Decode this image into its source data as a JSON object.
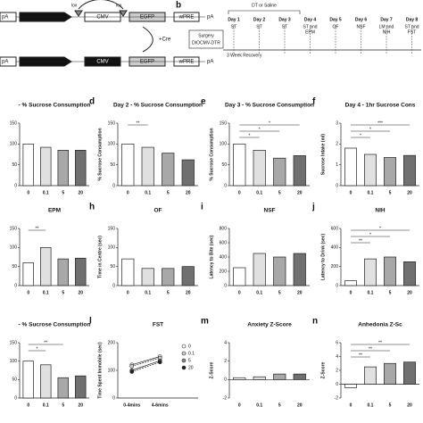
{
  "panel_a": {
    "left_end": "pA",
    "lox_1": "lox",
    "lox_2": "lox",
    "promoter": "CMV",
    "reporter": "EGFP",
    "wpre": "wPRE",
    "polya": "pA",
    "cre": "+Cre",
    "promoter_2": "CMV",
    "reporter_2": "EGFP",
    "wpre_2": "wPRE",
    "polya_2": "pA",
    "left_end_2": "pA"
  },
  "panel_b": {
    "label": "b",
    "treatment": "DT or Saline",
    "surgery": "Surgery",
    "virus": "DIOCMV-DTR",
    "recovery": "3 Week Recovery",
    "days": [
      {
        "day": "Day 1",
        "test": [
          "ST"
        ]
      },
      {
        "day": "Day 2",
        "test": [
          "ST"
        ]
      },
      {
        "day": "Day 3",
        "test": [
          "ST"
        ]
      },
      {
        "day": "Day 4",
        "test": [
          "ST and",
          "EPM"
        ]
      },
      {
        "day": "Day 5",
        "test": [
          "OF"
        ]
      },
      {
        "day": "Day 6",
        "test": [
          "NSF"
        ]
      },
      {
        "day": "Day 7",
        "test": [
          "LM and",
          "NIH"
        ]
      },
      {
        "day": "Day 8",
        "test": [
          "ST and",
          "FST"
        ]
      }
    ]
  },
  "chart_data": [
    {
      "type": "bar",
      "title": "- % Sucrose Consumption",
      "categories": [
        "0",
        "0.1",
        "5",
        "20"
      ],
      "values": [
        100,
        92,
        85,
        85
      ],
      "colors": [
        "#ffffff",
        "#e0e0e0",
        "#a8a8a8",
        "#707070"
      ],
      "ylim": [
        0,
        150
      ],
      "yticks": [
        0,
        50,
        100,
        150
      ],
      "annotations": []
    },
    {
      "type": "bar",
      "label": "d",
      "title": "Day 2 - % Sucrose Consumption",
      "ylabel": "% Sucrose Consumption",
      "categories": [
        "0",
        "0.1",
        "5",
        "20"
      ],
      "values": [
        100,
        92,
        78,
        62
      ],
      "colors": [
        "#ffffff",
        "#e0e0e0",
        "#a8a8a8",
        "#707070"
      ],
      "ylim": [
        0,
        150
      ],
      "yticks": [
        0,
        50,
        100,
        150
      ],
      "annotations": [
        "**"
      ]
    },
    {
      "type": "bar",
      "label": "e",
      "title": "Day 3 - % Sucrose Consumption",
      "ylabel": "% Sucrose Consumption",
      "categories": [
        "0",
        "0.1",
        "5",
        "20"
      ],
      "values": [
        100,
        85,
        66,
        72
      ],
      "colors": [
        "#ffffff",
        "#e0e0e0",
        "#a8a8a8",
        "#707070"
      ],
      "ylim": [
        0,
        150
      ],
      "yticks": [
        0,
        50,
        100,
        150
      ],
      "annotations": [
        "*",
        "*",
        "*"
      ]
    },
    {
      "type": "bar",
      "label": "f",
      "title": "Day 4 - 1hr Sucrose Cons",
      "ylabel": "Sucrose Intake (ml)",
      "categories": [
        "0",
        "0.1",
        "5",
        "20"
      ],
      "values": [
        1.8,
        1.5,
        1.35,
        1.45
      ],
      "colors": [
        "#ffffff",
        "#e0e0e0",
        "#a8a8a8",
        "#707070"
      ],
      "ylim": [
        0,
        3
      ],
      "yticks": [
        0,
        1,
        2,
        3
      ],
      "annotations": [
        "*",
        "*",
        "***"
      ]
    },
    {
      "type": "bar",
      "title": "EPM",
      "categories": [
        "0",
        "0.1",
        "5",
        "20"
      ],
      "values": [
        60,
        100,
        70,
        72
      ],
      "colors": [
        "#ffffff",
        "#e0e0e0",
        "#a8a8a8",
        "#707070"
      ],
      "ylim": [
        0,
        150
      ],
      "yticks": [
        0,
        50,
        100,
        150
      ],
      "annotations": [
        "**"
      ]
    },
    {
      "type": "bar",
      "label": "h",
      "title": "OF",
      "ylabel": "Time in Centre (sec)",
      "categories": [
        "0",
        "0.1",
        "5",
        "20"
      ],
      "values": [
        70,
        45,
        45,
        50
      ],
      "colors": [
        "#ffffff",
        "#e0e0e0",
        "#a8a8a8",
        "#707070"
      ],
      "ylim": [
        0,
        150
      ],
      "yticks": [
        0,
        50,
        100,
        150
      ],
      "annotations": []
    },
    {
      "type": "bar",
      "label": "i",
      "title": "NSF",
      "ylabel": "Latency to Bite (sec)",
      "categories": [
        "0",
        "0.1",
        "5",
        "20"
      ],
      "values": [
        250,
        450,
        400,
        450
      ],
      "colors": [
        "#ffffff",
        "#e0e0e0",
        "#a8a8a8",
        "#707070"
      ],
      "ylim": [
        0,
        800
      ],
      "yticks": [
        0,
        200,
        400,
        600,
        800
      ],
      "annotations": []
    },
    {
      "type": "bar",
      "label": "j",
      "title": "NIH",
      "ylabel": "Latency to Drink (sec)",
      "categories": [
        "0",
        "0.1",
        "5",
        "20"
      ],
      "values": [
        50,
        280,
        300,
        250
      ],
      "colors": [
        "#ffffff",
        "#e0e0e0",
        "#a8a8a8",
        "#707070"
      ],
      "ylim": [
        0,
        600
      ],
      "yticks": [
        0,
        200,
        400,
        600
      ],
      "annotations": [
        "**",
        "*",
        "*"
      ]
    },
    {
      "type": "bar",
      "title": "- % Sucrose Consumption",
      "categories": [
        "0",
        "0.1",
        "5",
        "20"
      ],
      "values": [
        100,
        90,
        55,
        60
      ],
      "colors": [
        "#ffffff",
        "#e0e0e0",
        "#a8a8a8",
        "#707070"
      ],
      "ylim": [
        0,
        150
      ],
      "yticks": [
        0,
        50,
        100,
        150
      ],
      "annotations": [
        "*",
        "**"
      ]
    },
    {
      "type": "line",
      "label": "l",
      "title": "FST",
      "ylabel": "Time Spent Immobile (sec)",
      "categories": [
        "0-4mins",
        "4-6mins"
      ],
      "series": [
        {
          "name": "0",
          "color": "#ffffff",
          "values": [
            120,
            150
          ]
        },
        {
          "name": "0.1",
          "color": "#d0d0d0",
          "values": [
            115,
            145
          ]
        },
        {
          "name": "5",
          "color": "#888888",
          "values": [
            100,
            135
          ]
        },
        {
          "name": "20",
          "color": "#222222",
          "values": [
            95,
            130
          ]
        }
      ],
      "ylim": [
        0,
        200
      ],
      "yticks": [
        0,
        100,
        200
      ]
    },
    {
      "type": "bar",
      "label": "m",
      "title": "Anxiety Z-Score",
      "ylabel": "Z-Score",
      "categories": [
        "0",
        "0.1",
        "5",
        "20"
      ],
      "values": [
        0.2,
        0.3,
        0.6,
        0.6
      ],
      "colors": [
        "#ffffff",
        "#e0e0e0",
        "#a8a8a8",
        "#707070"
      ],
      "ylim": [
        -2,
        4
      ],
      "yticks": [
        -2,
        0,
        2,
        4
      ],
      "annotations": []
    },
    {
      "type": "bar",
      "label": "n",
      "title": "Anhedonia Z-Sc",
      "ylabel": "Z-Score",
      "categories": [
        "0",
        "0.1",
        "5",
        "20"
      ],
      "values": [
        -0.5,
        2.5,
        3,
        3.2
      ],
      "colors": [
        "#ffffff",
        "#e0e0e0",
        "#a8a8a8",
        "#707070"
      ],
      "ylim": [
        -2,
        6
      ],
      "yticks": [
        -2,
        0,
        2,
        4,
        6
      ],
      "annotations": [
        "**",
        "**",
        "**"
      ]
    }
  ]
}
